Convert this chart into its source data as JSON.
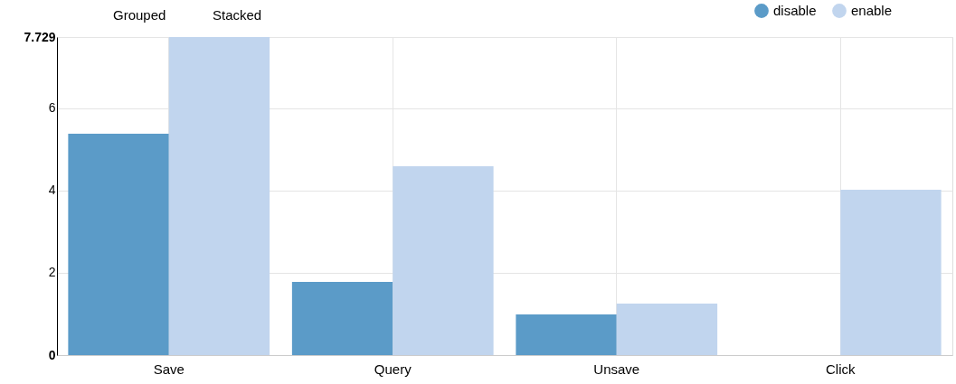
{
  "chart_data": {
    "type": "bar",
    "categories": [
      "Save",
      "Query",
      "Unsave",
      "Click"
    ],
    "series": [
      {
        "name": "disable",
        "color": "#5b9bc8",
        "values": [
          5.38,
          1.78,
          0.99,
          0
        ]
      },
      {
        "name": "enable",
        "color": "#c1d5ee",
        "values": [
          7.729,
          4.59,
          1.25,
          4.02
        ]
      }
    ],
    "ylim": [
      0,
      7.729
    ],
    "yticks": [
      0,
      2,
      4,
      6,
      7.729
    ],
    "grid": true,
    "legend": "top right",
    "annotations": [
      "Grouped",
      "Stacked"
    ]
  }
}
